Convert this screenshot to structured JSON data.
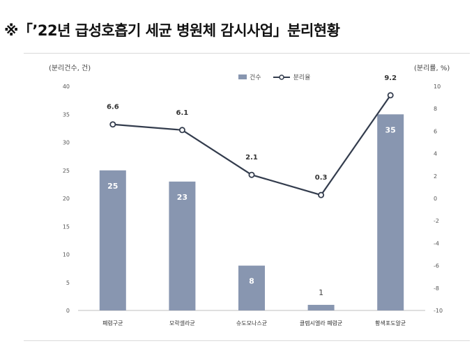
{
  "title": "※「’22년 급성호흡기 세균 병원체 감시사업」분리현황",
  "legend": {
    "bar_label": "건수",
    "line_label": "분리율"
  },
  "colors": {
    "bar": "#8896b0",
    "line": "#333c4d",
    "marker_fill": "#ffffff"
  },
  "chart_data": {
    "type": "bar",
    "title": "",
    "categories": [
      "폐렴구균",
      "모락셀라균",
      "슈도모나스균",
      "클렙시엘라 폐렴균",
      "황색포도알균"
    ],
    "series": [
      {
        "name": "건수",
        "type": "bar",
        "axis": "left",
        "values": [
          25,
          23,
          8,
          1,
          35
        ]
      },
      {
        "name": "분리율",
        "type": "line",
        "axis": "right",
        "values": [
          6.6,
          6.1,
          2.1,
          0.3,
          9.2
        ]
      }
    ],
    "ylabel": "(분리건수, 건)",
    "y2label": "(분리률, %)",
    "ylim": [
      0,
      40
    ],
    "y2lim": [
      -10,
      10
    ],
    "yticks": [
      0,
      5,
      10,
      15,
      20,
      25,
      30,
      35,
      40
    ],
    "y2ticks": [
      -10,
      -8,
      -6,
      -4,
      -2,
      0,
      2,
      4,
      6,
      8,
      10
    ],
    "grid": false,
    "legend_position": "top-center"
  }
}
